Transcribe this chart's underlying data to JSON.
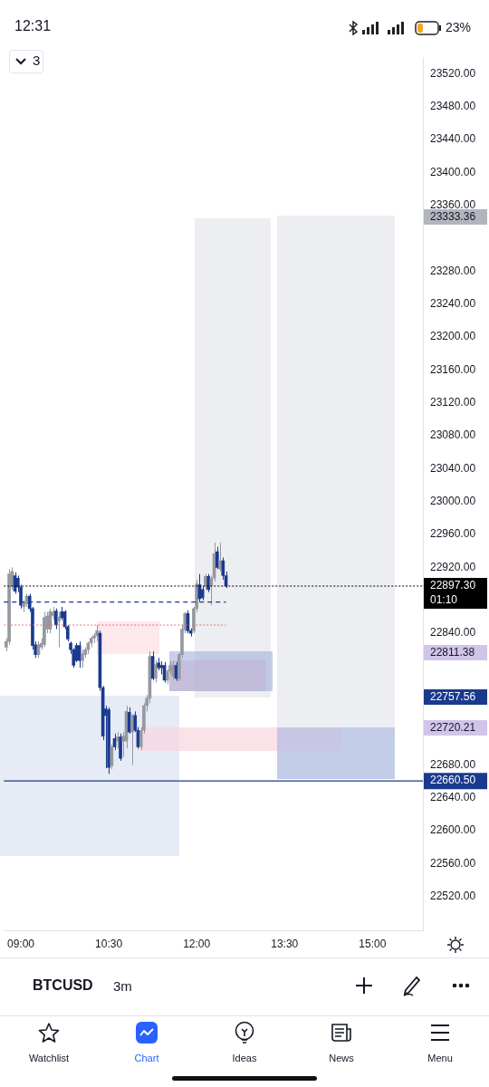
{
  "chart_data": {
    "type": "candlestick",
    "x": [
      8.75,
      8.8,
      8.85,
      8.9,
      8.95,
      9,
      9.05,
      9.1,
      9.15,
      9.2,
      9.25,
      9.3,
      9.35,
      9.4,
      9.45,
      9.5,
      9.55,
      9.6,
      9.65,
      9.7,
      9.75,
      9.8,
      9.85,
      9.9,
      9.95,
      10,
      10.05,
      10.1,
      10.15,
      10.2,
      10.25,
      10.3,
      10.35,
      10.4,
      10.45,
      10.5,
      10.55,
      10.6,
      10.65,
      10.7,
      10.75,
      10.8,
      10.85,
      10.9,
      10.95,
      11,
      11.05,
      11.1,
      11.15,
      11.2,
      11.25,
      11.3,
      11.35,
      11.4,
      11.45,
      11.5,
      11.55,
      11.6,
      11.65,
      11.7,
      11.75,
      11.8,
      11.85,
      11.9,
      11.95,
      12,
      12.05,
      12.1,
      12.15,
      12.2,
      12.25,
      12.3,
      12.35,
      12.4,
      12.45,
      12.5
    ],
    "ohlc": [
      [
        22823,
        22834,
        22818,
        22830
      ],
      [
        22830,
        22918,
        22826,
        22912
      ],
      [
        22897,
        22920,
        22893,
        22915
      ],
      [
        22910,
        22914,
        22888,
        22891
      ],
      [
        22907,
        22910,
        22890,
        22896
      ],
      [
        22896,
        22899,
        22870,
        22874
      ],
      [
        22872,
        22880,
        22866,
        22877
      ],
      [
        22876,
        22888,
        22872,
        22885
      ],
      [
        22885,
        22888,
        22866,
        22870
      ],
      [
        22870,
        22872,
        22820,
        22825
      ],
      [
        22826,
        22830,
        22810,
        22814
      ],
      [
        22814,
        22830,
        22810,
        22826
      ],
      [
        22823,
        22834,
        22820,
        22828
      ],
      [
        22826,
        22866,
        22823,
        22859
      ],
      [
        22845,
        22866,
        22840,
        22861
      ],
      [
        22845,
        22870,
        22840,
        22866
      ],
      [
        22861,
        22872,
        22856,
        22866
      ],
      [
        22867,
        22870,
        22845,
        22850
      ],
      [
        22855,
        22866,
        22823,
        22860
      ],
      [
        22866,
        22872,
        22856,
        22859
      ],
      [
        22866,
        22868,
        22845,
        22848
      ],
      [
        22848,
        22850,
        22830,
        22833
      ],
      [
        22828,
        22830,
        22815,
        22820
      ],
      [
        22820,
        22822,
        22798,
        22801
      ],
      [
        22825,
        22828,
        22805,
        22807
      ],
      [
        22825,
        22830,
        22798,
        22807
      ],
      [
        22807,
        22820,
        22798,
        22815
      ],
      [
        22814,
        22823,
        22810,
        22820
      ],
      [
        22820,
        22830,
        22815,
        22828
      ],
      [
        22828,
        22836,
        22823,
        22834
      ],
      [
        22834,
        22840,
        22828,
        22837
      ],
      [
        22837,
        22850,
        22830,
        22843
      ],
      [
        22840,
        22843,
        22770,
        22774
      ],
      [
        22774,
        22776,
        22710,
        22715
      ],
      [
        22748,
        22752,
        22676,
        22740
      ],
      [
        22747,
        22750,
        22669,
        22677
      ],
      [
        22679,
        22705,
        22675,
        22702
      ],
      [
        22712,
        22718,
        22698,
        22702
      ],
      [
        22709,
        22720,
        22700,
        22714
      ],
      [
        22714,
        22718,
        22685,
        22688
      ],
      [
        22709,
        22720,
        22690,
        22715
      ],
      [
        22709,
        22752,
        22700,
        22745
      ],
      [
        22744,
        22750,
        22718,
        22720
      ],
      [
        22720,
        22742,
        22680,
        22740
      ],
      [
        22740,
        22745,
        22720,
        22722
      ],
      [
        22722,
        22726,
        22700,
        22702
      ],
      [
        22702,
        22726,
        22698,
        22722
      ],
      [
        22722,
        22755,
        22718,
        22752
      ],
      [
        22752,
        22765,
        22745,
        22761
      ],
      [
        22761,
        22818,
        22755,
        22812
      ],
      [
        22812,
        22818,
        22783,
        22785
      ],
      [
        22785,
        22807,
        22780,
        22802
      ],
      [
        22804,
        22810,
        22795,
        22798
      ],
      [
        22801,
        22806,
        22790,
        22798
      ],
      [
        22801,
        22805,
        22780,
        22783
      ],
      [
        22783,
        22796,
        22778,
        22794
      ],
      [
        22794,
        22805,
        22790,
        22801
      ],
      [
        22788,
        22806,
        22784,
        22801
      ],
      [
        22801,
        22805,
        22782,
        22785
      ],
      [
        22785,
        22816,
        22782,
        22814
      ],
      [
        22814,
        22850,
        22810,
        22845
      ],
      [
        22844,
        22866,
        22840,
        22864
      ],
      [
        22864,
        22868,
        22840,
        22843
      ],
      [
        22843,
        22846,
        22836,
        22840
      ],
      [
        22843,
        22872,
        22840,
        22870
      ],
      [
        22870,
        22905,
        22866,
        22900
      ],
      [
        22899,
        22912,
        22878,
        22882
      ],
      [
        22893,
        22897,
        22880,
        22883
      ],
      [
        22897,
        22912,
        22893,
        22909
      ],
      [
        22909,
        22912,
        22890,
        22893
      ],
      [
        22898,
        22910,
        22874,
        22907
      ],
      [
        22907,
        22950,
        22903,
        22937
      ],
      [
        22939,
        22945,
        22918,
        22920
      ],
      [
        22918,
        22950,
        22915,
        22928
      ],
      [
        22928,
        22932,
        22905,
        22910
      ],
      [
        22910,
        22915,
        22895,
        22897.3
      ]
    ],
    "colors": [
      "#9598a1",
      "#9598a1",
      "#9598a1",
      "#1a3a8f",
      "#1a3a8f",
      "#1a3a8f",
      "#9598a1",
      "#9598a1",
      "#1a3a8f",
      "#1a3a8f",
      "#1a3a8f",
      "#9598a1",
      "#9598a1",
      "#9598a1",
      "#9598a1",
      "#9598a1",
      "#9598a1",
      "#1a3a8f",
      "#9598a1",
      "#1a3a8f",
      "#1a3a8f",
      "#1a3a8f",
      "#1a3a8f",
      "#1a3a8f",
      "#1a3a8f",
      "#1a3a8f",
      "#9598a1",
      "#9598a1",
      "#9598a1",
      "#9598a1",
      "#9598a1",
      "#9598a1",
      "#1a3a8f",
      "#1a3a8f",
      "#1a3a8f",
      "#1a3a8f",
      "#9598a1",
      "#1a3a8f",
      "#9598a1",
      "#1a3a8f",
      "#9598a1",
      "#9598a1",
      "#1a3a8f",
      "#9598a1",
      "#1a3a8f",
      "#1a3a8f",
      "#9598a1",
      "#9598a1",
      "#9598a1",
      "#9598a1",
      "#1a3a8f",
      "#9598a1",
      "#1a3a8f",
      "#1a3a8f",
      "#1a3a8f",
      "#9598a1",
      "#9598a1",
      "#9598a1",
      "#1a3a8f",
      "#9598a1",
      "#9598a1",
      "#9598a1",
      "#1a3a8f",
      "#1a3a8f",
      "#9598a1",
      "#9598a1",
      "#1a3a8f",
      "#1a3a8f",
      "#9598a1",
      "#1a3a8f",
      "#9598a1",
      "#9598a1",
      "#1a3a8f",
      "#9598a1",
      "#1a3a8f",
      "#1a3a8f"
    ],
    "xlim": [
      8.71,
      15.86
    ],
    "xticks": [
      {
        "value": 9,
        "label": "09:00"
      },
      {
        "value": 10.5,
        "label": "10:30"
      },
      {
        "value": 12,
        "label": "12:00"
      },
      {
        "value": 13.5,
        "label": "13:30"
      },
      {
        "value": 15,
        "label": "15:00"
      }
    ],
    "ylim": [
      22479,
      23540
    ],
    "yticks": [
      {
        "value": 23520,
        "label": "23520.00"
      },
      {
        "value": 23480,
        "label": "23480.00"
      },
      {
        "value": 23440,
        "label": "23440.00"
      },
      {
        "value": 23400,
        "label": "23400.00"
      },
      {
        "value": 23360,
        "label": "23360.00"
      },
      {
        "value": 23280,
        "label": "23280.00"
      },
      {
        "value": 23240,
        "label": "23240.00"
      },
      {
        "value": 23200,
        "label": "23200.00"
      },
      {
        "value": 23160,
        "label": "23160.00"
      },
      {
        "value": 23120,
        "label": "23120.00"
      },
      {
        "value": 23080,
        "label": "23080.00"
      },
      {
        "value": 23040,
        "label": "23040.00"
      },
      {
        "value": 23000,
        "label": "23000.00"
      },
      {
        "value": 22960,
        "label": "22960.00"
      },
      {
        "value": 22920,
        "label": "22920.00"
      },
      {
        "value": 22840,
        "label": "22840.00"
      },
      {
        "value": 22680,
        "label": "22680.00"
      },
      {
        "value": 22640,
        "label": "22640.00"
      },
      {
        "value": 22600,
        "label": "22600.00"
      },
      {
        "value": 22560,
        "label": "22560.00"
      },
      {
        "value": 22520,
        "label": "22520.00"
      }
    ],
    "ref_lines": [
      {
        "axis": "y",
        "value": 22897.3,
        "label": "22897.30\n01:10",
        "color": "#000000",
        "line_style": "dotted"
      },
      {
        "axis": "y",
        "value": 22660.5,
        "label": "22660.50",
        "color": "#1a3a8f",
        "line_style": "solid"
      },
      {
        "axis": "y",
        "value": 22878,
        "color": "#1a3a8f",
        "line_style": "dashed"
      },
      {
        "axis": "y",
        "value": 22850,
        "color": "#e57373",
        "line_style": "dotted"
      }
    ],
    "annotations": [
      "12:31",
      "23%",
      "3",
      "BTCUSD",
      "3m",
      "Watchlist",
      "Chart",
      "Ideas",
      "News",
      "Menu",
      "23333.36",
      "22811.38",
      "22757.56",
      "22720.21"
    ],
    "grid": false,
    "legend": false
  }
}
